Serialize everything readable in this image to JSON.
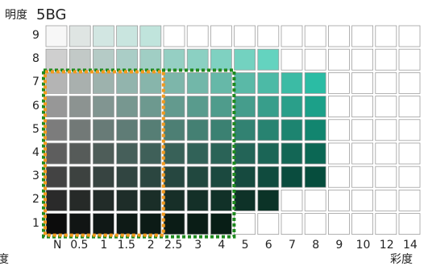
{
  "header": {
    "value_label": "明度",
    "hue_label": "5BG"
  },
  "axes": {
    "value_ticks": [
      "9",
      "8",
      "7",
      "6",
      "5",
      "4",
      "3",
      "2",
      "1"
    ],
    "chroma_ticks": [
      "N",
      "0.5",
      "1",
      "1.5",
      "2",
      "2.5",
      "3",
      "4",
      "5",
      "6",
      "7",
      "8",
      "9",
      "10",
      "12",
      "14"
    ],
    "x_axis_label_left": "度",
    "x_axis_label_right": "彩度"
  },
  "grid": {
    "empty_cell_color": "#ffffff",
    "border_color": "#9e9e9e",
    "rows": [
      {
        "value": "9",
        "colors": [
          "#f7f7f7",
          "#dfe5e3",
          "#d2e6e2",
          "#c9e5df",
          "#c0e4dc",
          null,
          null,
          null,
          null,
          null,
          null,
          null,
          null,
          null,
          null,
          null
        ]
      },
      {
        "value": "8",
        "colors": [
          "#cfcfcf",
          "#c2c9c7",
          "#b5cbc6",
          "#aacdc6",
          "#a0cec4",
          "#95cfc3",
          "#8bd0c2",
          "#7fd1c1",
          "#73d2c0",
          "#64d3bf",
          null,
          null,
          null,
          null,
          null,
          null
        ]
      },
      {
        "value": "7",
        "colors": [
          "#b4b4b4",
          "#a9b0ae",
          "#9db2ad",
          "#92b4ad",
          "#87b5ab",
          "#7db6aa",
          "#72b7a9",
          "#66b8a8",
          "#5ab9a7",
          "#4cbaa6",
          "#3cbba5",
          "#2bbca4",
          null,
          null,
          null,
          null
        ]
      },
      {
        "value": "6",
        "colors": [
          "#979797",
          "#8c9391",
          "#819591",
          "#779790",
          "#6d998f",
          "#639a8e",
          "#599b8d",
          "#4f9c8c",
          "#459d8c",
          "#389e8b",
          "#2a9f8a",
          "#1ca089",
          null,
          null,
          null,
          null
        ]
      },
      {
        "value": "5",
        "colors": [
          "#7c7c7c",
          "#727977",
          "#687b77",
          "#5f7c76",
          "#567e75",
          "#4d7f74",
          "#448073",
          "#3b8172",
          "#328272",
          "#288371",
          "#1d8470",
          "#12856f",
          null,
          null,
          null,
          null
        ]
      },
      {
        "value": "4",
        "colors": [
          "#5e5e5e",
          "#565b59",
          "#4e5d59",
          "#465f5a",
          "#3f6059",
          "#386158",
          "#316258",
          "#2a6357",
          "#236457",
          "#1b6556",
          "#136655",
          "#0b6754",
          null,
          null,
          null,
          null
        ]
      },
      {
        "value": "3",
        "colors": [
          "#434343",
          "#3d4240",
          "#374441",
          "#314541",
          "#2b4640",
          "#264740",
          "#21483f",
          "#1b493f",
          "#164a3f",
          "#104b3e",
          "#0a4c3e",
          "#064d3d",
          null,
          null,
          null,
          null
        ]
      },
      {
        "value": "2",
        "colors": [
          "#2a2a2a",
          "#262a28",
          "#222c29",
          "#1e2d29",
          "#1a2e28",
          "#172f28",
          "#143028",
          "#113128",
          "#0e3228",
          "#0b3327",
          null,
          null,
          null,
          null,
          null,
          null
        ]
      },
      {
        "value": "1",
        "colors": [
          "#0c0c0c",
          "#111514",
          "#101816",
          "#0e1a16",
          "#0c1b16",
          "#0b1c16",
          "#0a1d16",
          "#081e16",
          null,
          null,
          null,
          null,
          null,
          null,
          null,
          null
        ]
      }
    ]
  },
  "outlines": {
    "green_color": "#1e8a1e",
    "orange_color": "#f39a1e"
  }
}
